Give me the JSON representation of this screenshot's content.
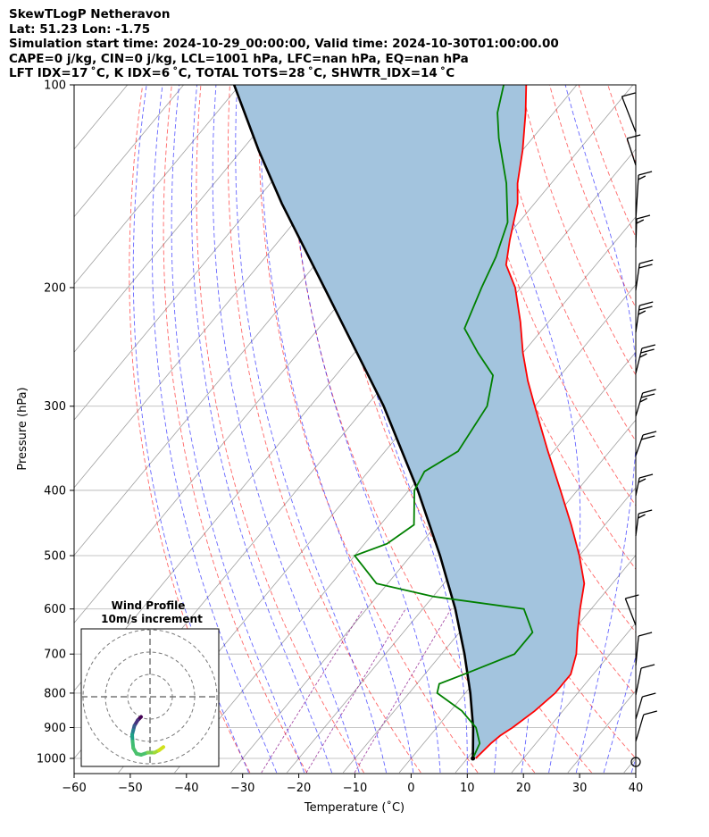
{
  "header": {
    "line1": "SkewTLogP Netheravon",
    "line2": "Lat: 51.23   Lon: -1.75",
    "line3": "Simulation start time: 2024-10-29_00:00:00, Valid time: 2024-10-30T01:00:00.00",
    "line4": "CAPE=0 j/kg, CIN=0 j/kg, LCL=1001 hPa, LFC=nan hPa, EQ=nan hPa",
    "line5": "LFT IDX=17 ˚C, K IDX=6 ˚C, TOTAL TOTS=28 ˚C, SHWTR_IDX=14 ˚C"
  },
  "colors": {
    "temperature": "#ff0000",
    "dewpoint": "#008000",
    "parcel": "#000000",
    "fill": "#a3c4de",
    "dry_adiabat": "#ff0000",
    "moist_adiabat": "#0000ff",
    "isotherm": "#808080",
    "mixing_ratio": "#800080"
  },
  "chart_data": [
    {
      "type": "line",
      "subtype": "skew-t log-p",
      "xlabel": "Temperature (˚C)",
      "ylabel": "Pressure (hPa)",
      "xlim": [
        -60,
        40
      ],
      "ylim": [
        1050,
        100
      ],
      "yscale": "log",
      "grid": true,
      "x_ticks": [
        "−60",
        "−50",
        "−40",
        "−30",
        "−20",
        "−10",
        "0",
        "10",
        "20",
        "30",
        "40"
      ],
      "y_ticks": [
        "1000",
        "900",
        "800",
        "700",
        "600",
        "500",
        "400",
        "300",
        "200",
        "100"
      ],
      "series": [
        {
          "role": "temperature",
          "points": [
            [
              1000,
              11.5
            ],
            [
              950,
              12.0
            ],
            [
              925,
              12.5
            ],
            [
              900,
              13.5
            ],
            [
              850,
              15.0
            ],
            [
              800,
              16.0
            ],
            [
              750,
              16.0
            ],
            [
              700,
              14.0
            ],
            [
              650,
              11.0
            ],
            [
              600,
              8.0
            ],
            [
              550,
              5.0
            ],
            [
              500,
              0.0
            ],
            [
              450,
              -6.0
            ],
            [
              400,
              -13.0
            ],
            [
              350,
              -21.0
            ],
            [
              300,
              -30.0
            ],
            [
              275,
              -35.0
            ],
            [
              250,
              -40.0
            ],
            [
              225,
              -45.0
            ],
            [
              200,
              -51.0
            ],
            [
              185,
              -56.0
            ],
            [
              170,
              -59.0
            ],
            [
              150,
              -63.0
            ],
            [
              140,
              -66.0
            ],
            [
              125,
              -70.0
            ],
            [
              110,
              -75.0
            ],
            [
              100,
              -79.0
            ]
          ]
        },
        {
          "role": "dewpoint",
          "points": [
            [
              1000,
              11.0
            ],
            [
              950,
              10.0
            ],
            [
              900,
              7.0
            ],
            [
              850,
              2.0
            ],
            [
              800,
              -5.0
            ],
            [
              775,
              -6.0
            ],
            [
              750,
              -3.0
            ],
            [
              700,
              3.0
            ],
            [
              650,
              3.0
            ],
            [
              600,
              -2.0
            ],
            [
              575,
              -20.0
            ],
            [
              550,
              -32.0
            ],
            [
              500,
              -40.0
            ],
            [
              480,
              -36.0
            ],
            [
              450,
              -34.0
            ],
            [
              400,
              -39.0
            ],
            [
              375,
              -40.0
            ],
            [
              350,
              -37.0
            ],
            [
              300,
              -38.5
            ],
            [
              270,
              -42.0
            ],
            [
              250,
              -48.0
            ],
            [
              230,
              -54.0
            ],
            [
              200,
              -57.0
            ],
            [
              180,
              -59.0
            ],
            [
              160,
              -62.0
            ],
            [
              140,
              -68.0
            ],
            [
              120,
              -76.0
            ],
            [
              110,
              -80.0
            ],
            [
              100,
              -83.0
            ]
          ]
        },
        {
          "role": "parcel",
          "points": [
            [
              1000,
              11.0
            ],
            [
              900,
              6.5
            ],
            [
              800,
              0.9
            ],
            [
              700,
              -5.9
            ],
            [
              600,
              -14.2
            ],
            [
              500,
              -24.8
            ],
            [
              400,
              -38.4
            ],
            [
              300,
              -56.9
            ],
            [
              200,
              -85.0
            ],
            [
              150,
              -105.0
            ],
            [
              125,
              -117.0
            ],
            [
              100,
              -131.0
            ]
          ]
        }
      ]
    },
    {
      "type": "line",
      "subtype": "hodograph",
      "title": "Wind Profile",
      "subtitle": "10m/s increment",
      "rings_ms": [
        10,
        20,
        30
      ],
      "points_uv": [
        [
          -4.0,
          -9.0
        ],
        [
          -5.5,
          -10.5
        ],
        [
          -7.0,
          -13.0
        ],
        [
          -7.5,
          -15.0
        ],
        [
          -8.0,
          -17.0
        ],
        [
          -7.8,
          -20.0
        ],
        [
          -7.5,
          -23.0
        ],
        [
          -6.0,
          -25.5
        ],
        [
          -4.0,
          -26.0
        ],
        [
          -1.0,
          -25.0
        ],
        [
          2.0,
          -25.0
        ],
        [
          4.0,
          -24.0
        ],
        [
          6.0,
          -22.5
        ]
      ]
    }
  ]
}
